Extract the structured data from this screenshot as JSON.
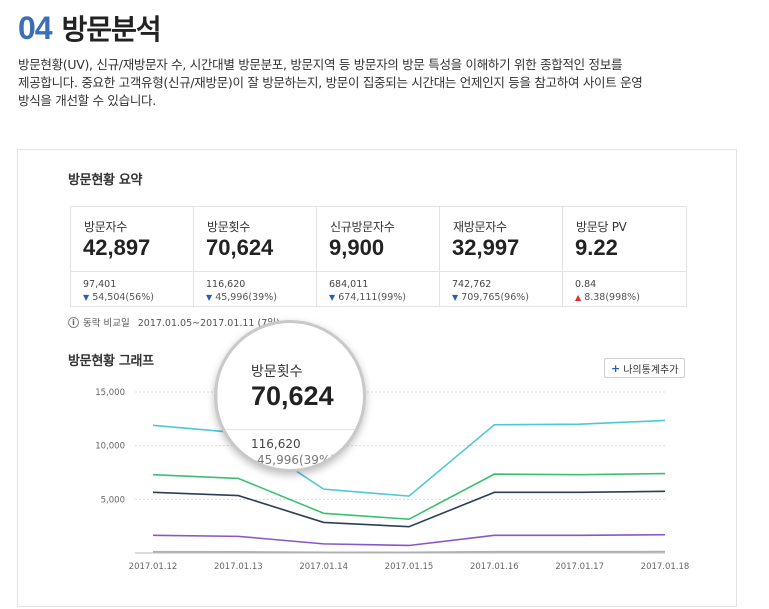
{
  "header": {
    "number": "04",
    "title": "방문분석"
  },
  "description": {
    "line1": "방문현황(UV), 신규/재방문자 수, 시간대별 방문분포, 방문지역 등 방문자의 방문 특성을 이해하기 위한 종합적인 정보를",
    "line2": "제공합니다. 중요한 고객유형(신규/재방문)이 잘 방문하는지, 방문이 집중되는 시간대는 언제인지 등을 참고하여 사이트 운영",
    "line3": "방식을 개선할 수 있습니다."
  },
  "summary": {
    "title": "방문현황 요약",
    "cards": [
      {
        "label": "방문자수",
        "value": "42,897",
        "prev": "97,401",
        "change": "54,504(56%)",
        "dir": "down"
      },
      {
        "label": "방문횟수",
        "value": "70,624",
        "prev": "116,620",
        "change": "45,996(39%)",
        "dir": "down"
      },
      {
        "label": "신규방문자수",
        "value": "9,900",
        "prev": "684,011",
        "change": "674,111(99%)",
        "dir": "down"
      },
      {
        "label": "재방문자수",
        "value": "32,997",
        "prev": "742,762",
        "change": "709,765(96%)",
        "dir": "down"
      },
      {
        "label": "방문당 PV",
        "value": "9.22",
        "prev": "0.84",
        "change": "8.38(998%)",
        "dir": "up"
      }
    ],
    "magnifier": {
      "label": "방문횟수",
      "value": "70,624",
      "prev": "116,620",
      "change": "45,996(39%)"
    },
    "note_label": "동락 비교일",
    "note_range": "2017.01.05~2017.01.11 (7일)"
  },
  "graph": {
    "title": "방문현황 그래프",
    "add_button": "나의통계추가"
  },
  "colors": {
    "accent": "#3d6fb6",
    "cyan": "#4dc8d8",
    "green": "#3cc070",
    "navy": "#2c3e58",
    "purple": "#8a55cc",
    "gray": "#b0b0b0"
  },
  "chart_data": {
    "type": "line",
    "x": [
      "2017.01.12",
      "2017.01.13",
      "2017.01.14",
      "2017.01.15",
      "2017.01.16",
      "2017.01.17",
      "2017.01.18"
    ],
    "yticks": [
      "15,000",
      "10,000",
      "5,000"
    ],
    "ylim": [
      0,
      15000
    ],
    "grid": true,
    "series": [
      {
        "color": "#4dc8d8",
        "values": [
          11900,
          11200,
          5950,
          5300,
          11950,
          12000,
          12350
        ]
      },
      {
        "color": "#3cc070",
        "values": [
          7300,
          6950,
          3700,
          3150,
          7350,
          7300,
          7400
        ]
      },
      {
        "color": "#2c3e58",
        "values": [
          5650,
          5350,
          2850,
          2450,
          5650,
          5650,
          5750
        ]
      },
      {
        "color": "#8a55cc",
        "values": [
          1650,
          1550,
          850,
          700,
          1650,
          1650,
          1700
        ]
      },
      {
        "color": "#b0b0b0",
        "values": [
          120,
          110,
          70,
          60,
          120,
          120,
          130
        ]
      }
    ]
  }
}
